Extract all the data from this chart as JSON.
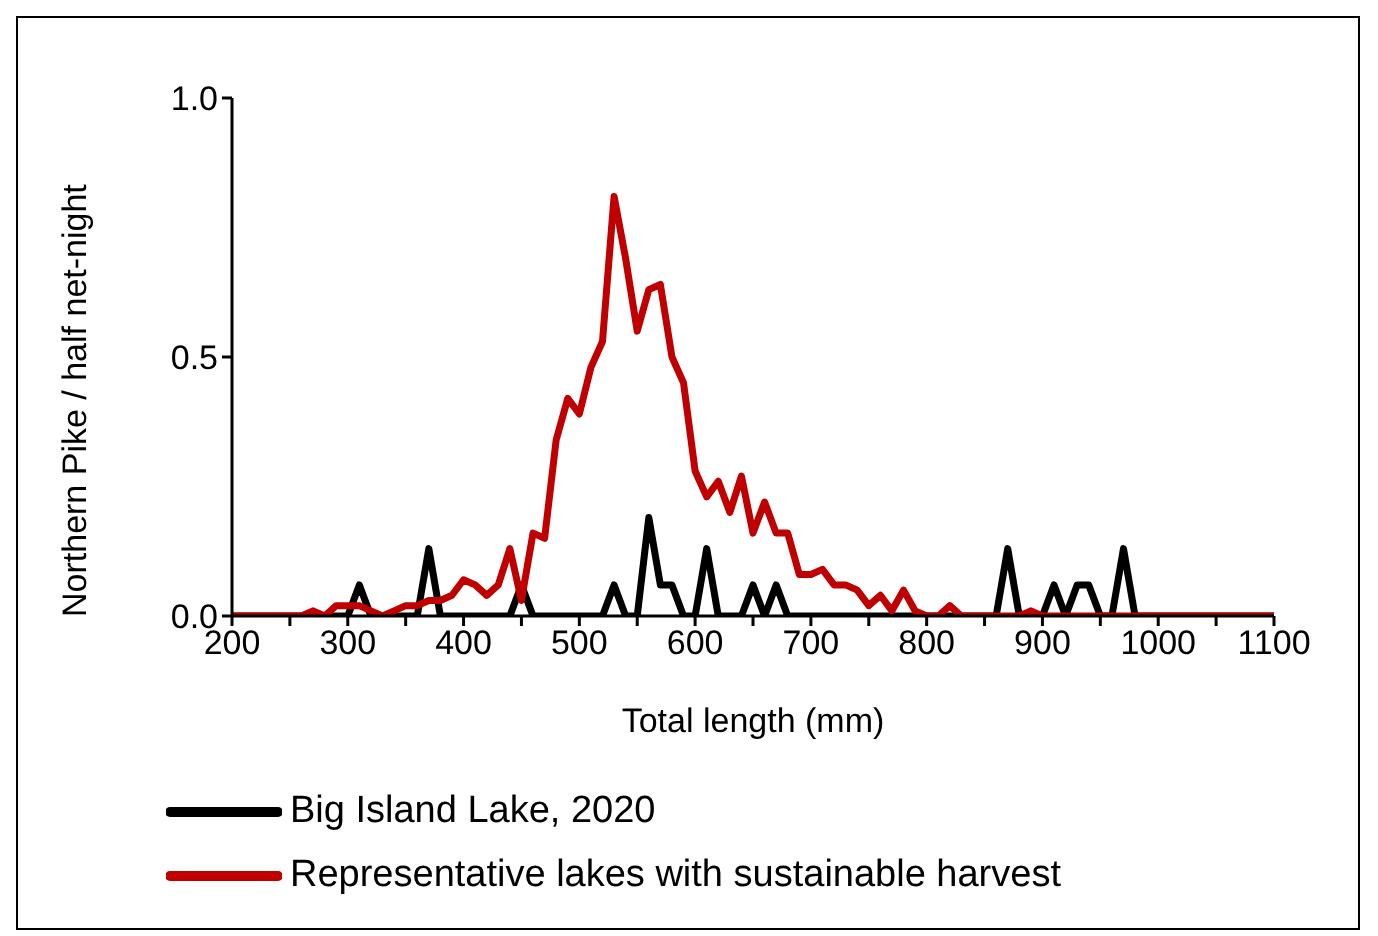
{
  "chart_data": {
    "type": "line",
    "xlabel": "Total length (mm)",
    "ylabel": "Northern Pike / half net-night",
    "x": [
      200,
      210,
      220,
      230,
      240,
      250,
      260,
      270,
      280,
      290,
      300,
      310,
      320,
      330,
      340,
      350,
      360,
      370,
      380,
      390,
      400,
      410,
      420,
      430,
      440,
      450,
      460,
      470,
      480,
      490,
      500,
      510,
      520,
      530,
      540,
      550,
      560,
      570,
      580,
      590,
      600,
      610,
      620,
      630,
      640,
      650,
      660,
      670,
      680,
      690,
      700,
      710,
      720,
      730,
      740,
      750,
      760,
      770,
      780,
      790,
      800,
      810,
      820,
      830,
      840,
      850,
      860,
      870,
      880,
      890,
      900,
      910,
      920,
      930,
      940,
      950,
      960,
      970,
      980,
      990,
      1000,
      1010,
      1020,
      1030,
      1040,
      1050,
      1060,
      1070,
      1080,
      1090,
      1100
    ],
    "series": [
      {
        "name": "Big Island Lake, 2020",
        "color": "#000000",
        "values": [
          0,
          0,
          0,
          0,
          0,
          0,
          0,
          0,
          0,
          0,
          0,
          0.06,
          0,
          0,
          0,
          0,
          0,
          0.13,
          0,
          0,
          0,
          0,
          0,
          0,
          0,
          0.06,
          0,
          0,
          0,
          0,
          0,
          0,
          0,
          0.06,
          0,
          0,
          0.19,
          0.06,
          0.06,
          0,
          0,
          0.13,
          0,
          0,
          0,
          0.06,
          0,
          0.06,
          0,
          0,
          0,
          0,
          0,
          0,
          0,
          0,
          0,
          0,
          0,
          0,
          0,
          0,
          0,
          0,
          0,
          0,
          0,
          0.13,
          0,
          0,
          0,
          0.06,
          0,
          0.06,
          0.06,
          0,
          0,
          0.13,
          0,
          0,
          0,
          0,
          0,
          0,
          0,
          0,
          0,
          0,
          0,
          0,
          0
        ]
      },
      {
        "name": "Representative lakes with sustainable harvest",
        "color": "#c00000",
        "values": [
          0,
          0,
          0,
          0,
          0,
          0,
          0,
          0.01,
          0,
          0.02,
          0.02,
          0.02,
          0.01,
          0,
          0.01,
          0.02,
          0.02,
          0.03,
          0.03,
          0.04,
          0.07,
          0.06,
          0.04,
          0.06,
          0.13,
          0.03,
          0.16,
          0.15,
          0.34,
          0.42,
          0.39,
          0.48,
          0.53,
          0.81,
          0.69,
          0.55,
          0.63,
          0.64,
          0.5,
          0.45,
          0.28,
          0.23,
          0.26,
          0.2,
          0.27,
          0.16,
          0.22,
          0.16,
          0.16,
          0.08,
          0.08,
          0.09,
          0.06,
          0.06,
          0.05,
          0.02,
          0.04,
          0.01,
          0.05,
          0.01,
          0,
          0,
          0.02,
          0,
          0,
          0,
          0,
          0,
          0,
          0.01,
          0,
          0,
          0,
          0,
          0,
          0,
          0,
          0,
          0,
          0,
          0,
          0,
          0,
          0,
          0,
          0,
          0,
          0,
          0,
          0,
          0
        ]
      }
    ],
    "xlim": [
      200,
      1100
    ],
    "xticks": [
      200,
      {
        "value": 250,
        "label": null
      },
      300,
      {
        "value": 350,
        "label": null
      },
      400,
      {
        "value": 450,
        "label": null
      },
      500,
      {
        "value": 550,
        "label": null
      },
      600,
      {
        "value": 650,
        "label": null
      },
      700,
      {
        "value": 750,
        "label": null
      },
      800,
      {
        "value": 850,
        "label": null
      },
      900,
      {
        "value": 950,
        "label": null
      },
      1000,
      {
        "value": 1050,
        "label": null
      },
      1100
    ],
    "ylim": [
      0,
      1
    ],
    "yticks": [
      {
        "value": 0,
        "label": "0.0"
      },
      {
        "value": 0.5,
        "label": "0.5"
      },
      {
        "value": 1,
        "label": "1.0"
      }
    ],
    "grid": false,
    "legend": "bottom",
    "marker": "none",
    "line_style": "solid"
  }
}
